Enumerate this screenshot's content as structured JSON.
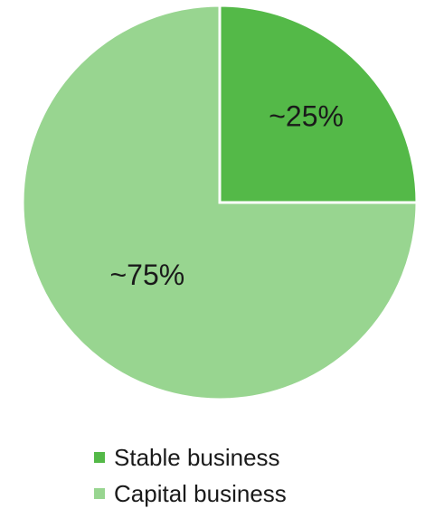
{
  "chart_data": {
    "type": "pie",
    "slices": [
      {
        "label": "Stable business",
        "value": 25,
        "data_label": "~25%",
        "color": "#54b948"
      },
      {
        "label": "Capital business",
        "value": 75,
        "data_label": "~75%",
        "color": "#98d590"
      }
    ],
    "start_angle_deg": 0,
    "direction": "clockwise",
    "legend_position": "bottom",
    "slice_border_color": "#ffffff"
  }
}
